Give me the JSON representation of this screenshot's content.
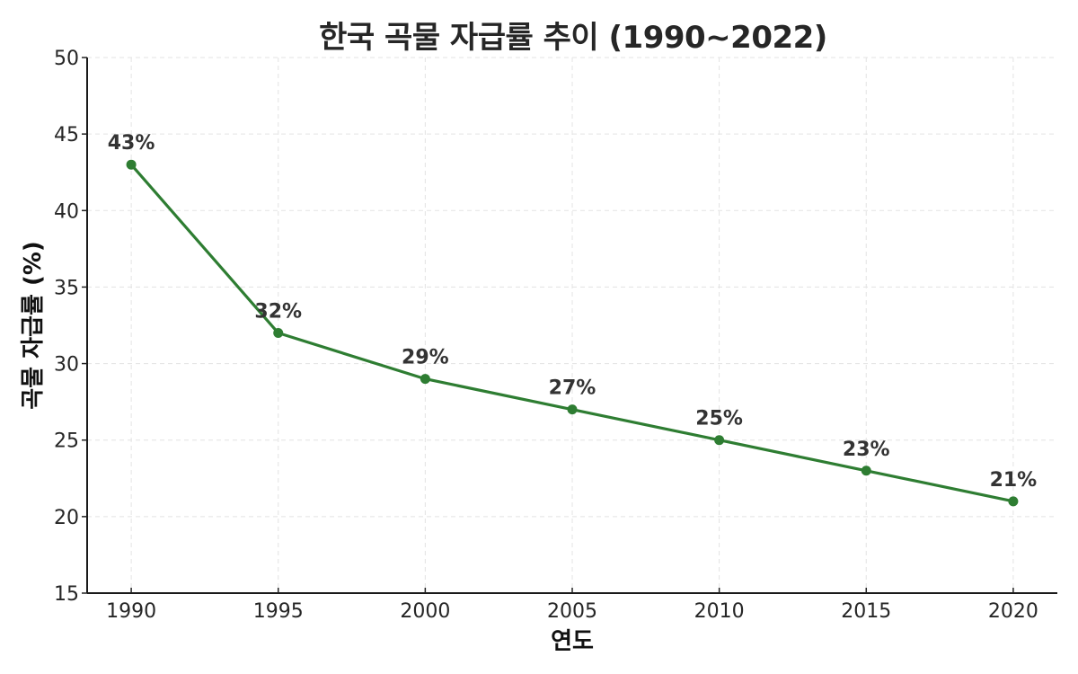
{
  "chart_data": {
    "type": "line",
    "title": "한국 곡물 자급률 추이 (1990~2022)",
    "xlabel": "연도",
    "ylabel": "곡물 자급률 (%)",
    "x": [
      1990,
      1995,
      2000,
      2005,
      2010,
      2015,
      2020
    ],
    "series": [
      {
        "name": "곡물 자급률",
        "values": [
          43,
          32,
          29,
          27,
          25,
          23,
          21
        ],
        "labels": [
          "43%",
          "32%",
          "29%",
          "27%",
          "25%",
          "23%",
          "21%"
        ],
        "color": "#2e7d32",
        "marker": "circle"
      }
    ],
    "xticks": [
      "1990",
      "1995",
      "2000",
      "2005",
      "2010",
      "2015",
      "2020"
    ],
    "yticks": [
      "15",
      "20",
      "25",
      "30",
      "35",
      "40",
      "45",
      "50"
    ],
    "xlim": [
      1988.5,
      2021.5
    ],
    "ylim": [
      15,
      50
    ],
    "grid": true,
    "legend": false
  }
}
